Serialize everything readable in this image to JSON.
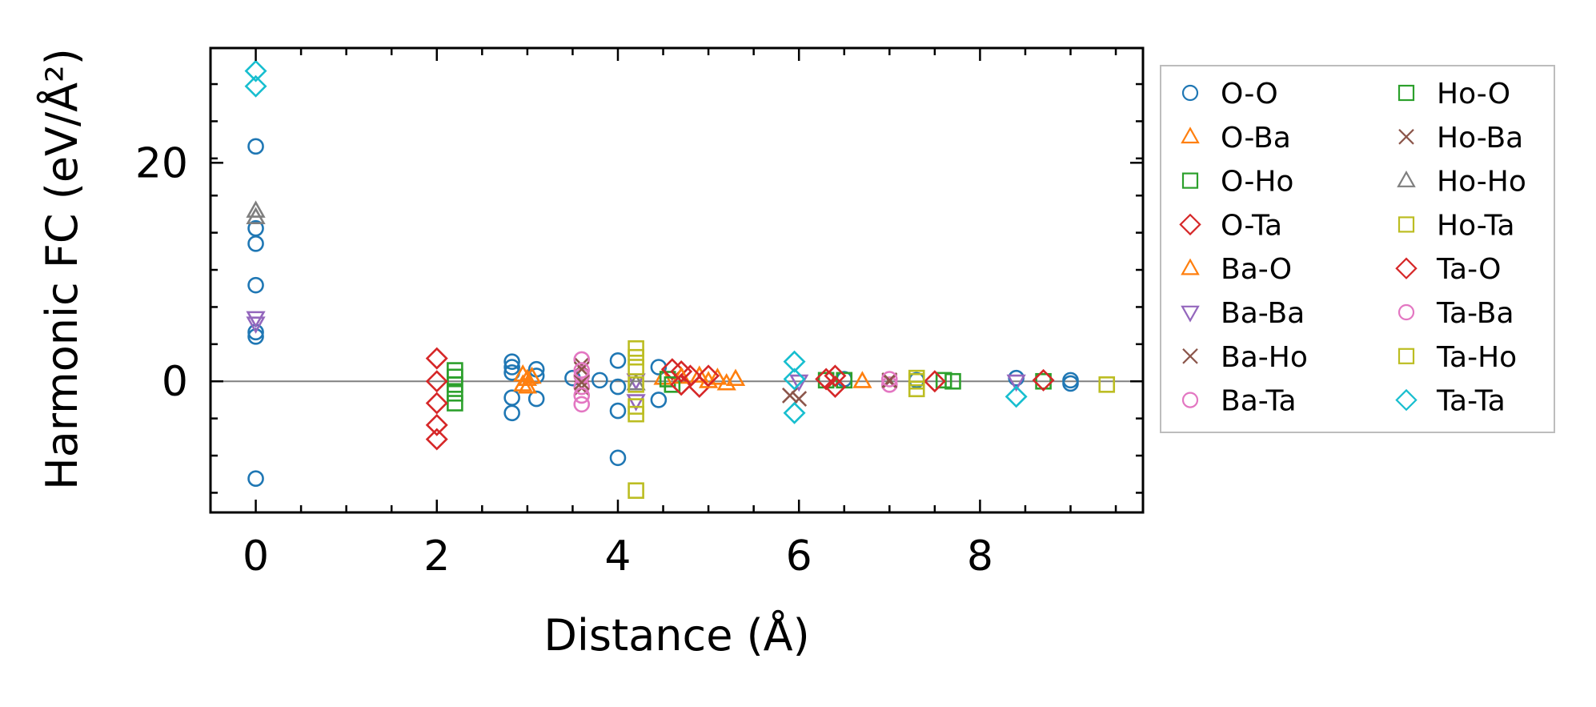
{
  "chart_data": {
    "type": "scatter",
    "title": "",
    "xlabel": "Distance (Å)",
    "ylabel": "Harmonic FC (eV/Å²)",
    "xlim": [
      -0.5,
      9.8
    ],
    "ylim": [
      -12,
      30.5
    ],
    "xticks": [
      0,
      2,
      4,
      6,
      8
    ],
    "xtick_labels": [
      "0",
      "2",
      "4",
      "6",
      "8"
    ],
    "yticks": [
      0,
      20
    ],
    "ytick_labels": [
      "0",
      "20"
    ],
    "legend_position": "outside-right",
    "zero_line": true,
    "series": [
      {
        "name": "O-O",
        "marker": "circle",
        "color": "#1f77b4",
        "points": [
          [
            0,
            21.5
          ],
          [
            0,
            14
          ],
          [
            0,
            12.6
          ],
          [
            0,
            8.8
          ],
          [
            0,
            4.5
          ],
          [
            0,
            4.1
          ],
          [
            0,
            -8.9
          ],
          [
            2.83,
            1.8
          ],
          [
            2.83,
            1.3
          ],
          [
            2.83,
            0.8
          ],
          [
            2.83,
            -1.5
          ],
          [
            2.83,
            -2.9
          ],
          [
            3.1,
            1.1
          ],
          [
            3.1,
            0.5
          ],
          [
            3.1,
            -1.6
          ],
          [
            3.5,
            0.3
          ],
          [
            3.8,
            0.1
          ],
          [
            4.0,
            1.9
          ],
          [
            4.0,
            -0.5
          ],
          [
            4.0,
            -2.7
          ],
          [
            4.0,
            -7.0
          ],
          [
            4.45,
            1.3
          ],
          [
            4.45,
            -1.7
          ],
          [
            6.5,
            0.2
          ],
          [
            7.3,
            0.1
          ],
          [
            8.4,
            0.3
          ],
          [
            9.0,
            0.1
          ],
          [
            9.0,
            -0.2
          ]
        ]
      },
      {
        "name": "O-Ba",
        "marker": "triangle-up",
        "color": "#ff7f0e",
        "points": [
          [
            2.95,
            0.6
          ],
          [
            2.95,
            -0.3
          ],
          [
            3.05,
            0.4
          ],
          [
            4.5,
            0.3
          ],
          [
            4.9,
            0.5
          ],
          [
            5.1,
            0.3
          ],
          [
            5.3,
            0.2
          ]
        ]
      },
      {
        "name": "O-Ho",
        "marker": "square",
        "color": "#2ca02c",
        "points": [
          [
            2.2,
            1.0
          ],
          [
            2.2,
            0.4
          ],
          [
            2.2,
            -0.3
          ],
          [
            2.2,
            -1.1
          ],
          [
            2.2,
            -2.0
          ],
          [
            4.55,
            0.2
          ],
          [
            6.3,
            0.1
          ],
          [
            7.7,
            0
          ]
        ]
      },
      {
        "name": "O-Ta",
        "marker": "diamond",
        "color": "#d62728",
        "points": [
          [
            2.0,
            2.1
          ],
          [
            2.0,
            0
          ],
          [
            2.0,
            -2.0
          ],
          [
            2.0,
            -4.0
          ],
          [
            2.0,
            -5.3
          ],
          [
            4.6,
            1.1
          ],
          [
            4.8,
            0.5
          ],
          [
            4.9,
            -0.5
          ],
          [
            6.3,
            0.2
          ]
        ]
      },
      {
        "name": "Ba-O",
        "marker": "triangle-up",
        "color": "#ff7f0e",
        "points": [
          [
            3.0,
            0.2
          ],
          [
            3.0,
            -0.5
          ],
          [
            4.7,
            0.4
          ],
          [
            5.0,
            0
          ],
          [
            5.2,
            -0.2
          ],
          [
            6.7,
            0
          ]
        ]
      },
      {
        "name": "Ba-Ba",
        "marker": "triangle-down",
        "color": "#9467bd",
        "points": [
          [
            0,
            5.8
          ],
          [
            0,
            5.3
          ],
          [
            4.2,
            0.1
          ],
          [
            4.2,
            -1.8
          ],
          [
            6.0,
            0
          ],
          [
            8.4,
            0
          ]
        ]
      },
      {
        "name": "Ba-Ho",
        "marker": "x",
        "color": "#8c564b",
        "points": [
          [
            3.6,
            1.5
          ],
          [
            3.6,
            -0.6
          ],
          [
            5.9,
            -1.3
          ],
          [
            7.0,
            0
          ]
        ]
      },
      {
        "name": "Ba-Ta",
        "marker": "circle",
        "color": "#e377c2",
        "points": [
          [
            3.6,
            2.0
          ],
          [
            3.6,
            0.5
          ],
          [
            3.6,
            -0.5
          ],
          [
            3.6,
            -2.1
          ],
          [
            7.0,
            -0.3
          ]
        ]
      },
      {
        "name": "Ho-O",
        "marker": "square",
        "color": "#2ca02c",
        "points": [
          [
            4.6,
            -0.3
          ],
          [
            6.5,
            0.1
          ],
          [
            7.6,
            0.1
          ],
          [
            8.7,
            0
          ]
        ]
      },
      {
        "name": "Ho-Ba",
        "marker": "x",
        "color": "#8c564b",
        "points": [
          [
            3.6,
            1.1
          ],
          [
            3.6,
            -0.1
          ],
          [
            6.0,
            -1.6
          ],
          [
            7.0,
            0.1
          ]
        ]
      },
      {
        "name": "Ho-Ho",
        "marker": "triangle-up",
        "color": "#7f7f7f",
        "points": [
          [
            0,
            15.6
          ],
          [
            0,
            15.0
          ],
          [
            4.2,
            -0.2
          ]
        ]
      },
      {
        "name": "Ho-Ta",
        "marker": "square",
        "color": "#bcbd22",
        "points": [
          [
            4.2,
            3.0
          ],
          [
            4.2,
            1.3
          ],
          [
            4.2,
            -0.3
          ],
          [
            4.2,
            -3.0
          ],
          [
            7.3,
            0.3
          ],
          [
            7.3,
            -0.7
          ],
          [
            9.4,
            -0.3
          ]
        ]
      },
      {
        "name": "Ta-O",
        "marker": "diamond",
        "color": "#d62728",
        "points": [
          [
            4.7,
            0.9
          ],
          [
            4.7,
            -0.3
          ],
          [
            5.0,
            0.5
          ],
          [
            6.4,
            0.5
          ],
          [
            6.4,
            -0.5
          ],
          [
            7.5,
            0
          ],
          [
            8.7,
            0.1
          ]
        ]
      },
      {
        "name": "Ta-Ba",
        "marker": "circle",
        "color": "#e377c2",
        "points": [
          [
            3.6,
            1.0
          ],
          [
            3.6,
            -1.3
          ],
          [
            7.0,
            0.2
          ]
        ]
      },
      {
        "name": "Ta-Ho",
        "marker": "square",
        "color": "#bcbd22",
        "points": [
          [
            4.2,
            2.2
          ],
          [
            4.2,
            -2.3
          ],
          [
            4.2,
            -10.0
          ],
          [
            7.3,
            0
          ]
        ]
      },
      {
        "name": "Ta-Ta",
        "marker": "diamond",
        "color": "#17becf",
        "points": [
          [
            0,
            28.4
          ],
          [
            0,
            27.0
          ],
          [
            5.95,
            1.8
          ],
          [
            5.95,
            0.2
          ],
          [
            5.95,
            -2.9
          ],
          [
            8.4,
            -1.4
          ]
        ]
      }
    ]
  }
}
